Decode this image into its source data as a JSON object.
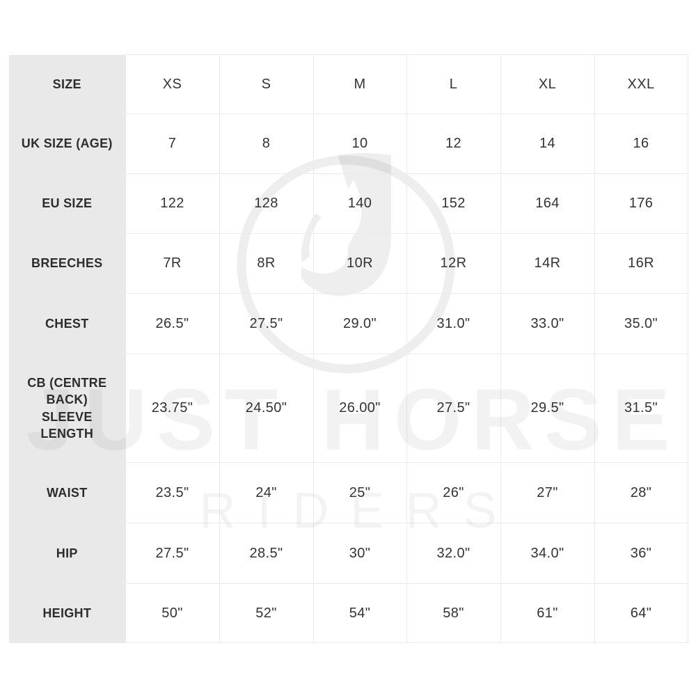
{
  "watermark": {
    "line1": "JUST HORSE",
    "line2": "RIDERS",
    "logo": "circled-j-horse-head-logo"
  },
  "size_chart": {
    "rows": [
      {
        "label": "SIZE",
        "values": [
          "XS",
          "S",
          "M",
          "L",
          "XL",
          "XXL"
        ]
      },
      {
        "label": "UK SIZE (AGE)",
        "values": [
          "7",
          "8",
          "10",
          "12",
          "14",
          "16"
        ]
      },
      {
        "label": "EU SIZE",
        "values": [
          "122",
          "128",
          "140",
          "152",
          "164",
          "176"
        ]
      },
      {
        "label": "BREECHES",
        "values": [
          "7R",
          "8R",
          "10R",
          "12R",
          "14R",
          "16R"
        ]
      },
      {
        "label": "CHEST",
        "values": [
          "26.5\"",
          "27.5\"",
          "29.0\"",
          "31.0\"",
          "33.0\"",
          "35.0\""
        ]
      },
      {
        "label": "CB (CENTRE\nBACK)\nSLEEVE\nLENGTH",
        "values": [
          "23.75\"",
          "24.50\"",
          "26.00\"",
          "27.5\"",
          "29.5\"",
          "31.5\""
        ]
      },
      {
        "label": "WAIST",
        "values": [
          "23.5\"",
          "24\"",
          "25\"",
          "26\"",
          "27\"",
          "28\""
        ]
      },
      {
        "label": "HIP",
        "values": [
          "27.5\"",
          "28.5\"",
          "30\"",
          "32.0\"",
          "34.0\"",
          "36\""
        ]
      },
      {
        "label": "HEIGHT",
        "values": [
          "50\"",
          "52\"",
          "54\"",
          "58\"",
          "61\"",
          "64\""
        ]
      }
    ]
  },
  "colors": {
    "label_column_bg": "#e9e9e9",
    "grid_line": "#ebebeb",
    "label_text": "#2d2d2d",
    "value_text": "#333333",
    "watermark_tint": "#f0f0f0"
  }
}
